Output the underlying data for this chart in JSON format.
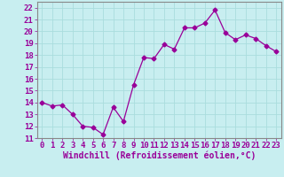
{
  "x": [
    0,
    1,
    2,
    3,
    4,
    5,
    6,
    7,
    8,
    9,
    10,
    11,
    12,
    13,
    14,
    15,
    16,
    17,
    18,
    19,
    20,
    21,
    22,
    23
  ],
  "y": [
    14.0,
    13.7,
    13.8,
    13.0,
    12.0,
    11.9,
    11.3,
    13.6,
    12.4,
    15.5,
    17.8,
    17.7,
    18.9,
    18.5,
    20.3,
    20.3,
    20.7,
    21.8,
    19.9,
    19.3,
    19.7,
    19.4,
    18.8,
    18.3
  ],
  "line_color": "#990099",
  "marker": "D",
  "markersize": 2.5,
  "linewidth": 0.9,
  "bg_color": "#c8eef0",
  "grid_color": "#aadddd",
  "border_color": "#888888",
  "xlabel": "Windchill (Refroidissement éolien,°C)",
  "xlabel_fontsize": 7,
  "ylabel_ticks": [
    11,
    12,
    13,
    14,
    15,
    16,
    17,
    18,
    19,
    20,
    21,
    22
  ],
  "xlim": [
    -0.5,
    23.5
  ],
  "ylim": [
    11,
    22.5
  ],
  "xtick_labels": [
    "0",
    "1",
    "2",
    "3",
    "4",
    "5",
    "6",
    "7",
    "8",
    "9",
    "10",
    "11",
    "12",
    "13",
    "14",
    "15",
    "16",
    "17",
    "18",
    "19",
    "20",
    "21",
    "22",
    "23"
  ],
  "tick_fontsize": 6.5,
  "label_color": "#990099"
}
